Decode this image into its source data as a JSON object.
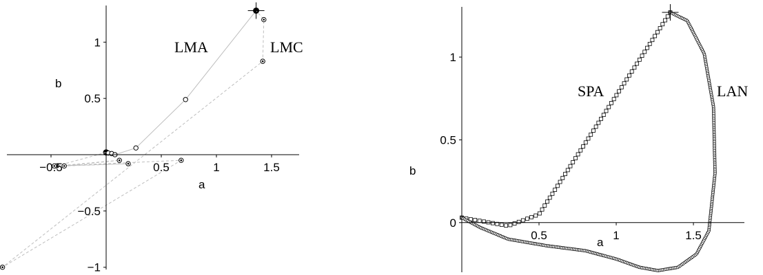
{
  "chart_data": [
    {
      "type": "line",
      "title": "",
      "xlabel": "a",
      "ylabel": "b",
      "xlim": [
        -0.9,
        1.75
      ],
      "ylim": [
        -1.02,
        1.35
      ],
      "x_ticks": [
        -0.5,
        0.5,
        1,
        1.5
      ],
      "x_tick_labels": [
        "−0.5",
        "0.5",
        "1",
        "1.5"
      ],
      "y_ticks": [
        -1,
        -0.5,
        0.5,
        1
      ],
      "y_tick_labels": [
        "−1",
        "−0.5",
        "0.5",
        "1"
      ],
      "grid": false,
      "legend": "none",
      "target": {
        "x": 1.36,
        "y": 1.28
      },
      "series": [
        {
          "name": "LMA",
          "style": "solid",
          "marker": "open-circle",
          "x": [
            0,
            0.02,
            0.05,
            0.08,
            0.27,
            0.72,
            1.36
          ],
          "y": [
            0.02,
            0.015,
            0.01,
            0.0,
            0.06,
            0.49,
            1.28
          ]
        },
        {
          "name": "LMC",
          "style": "dashed",
          "marker": "dotted-circle",
          "x": [
            0,
            -0.45,
            0.12,
            -0.38,
            0.2,
            -0.47,
            0.68,
            -0.94,
            1.42,
            1.43,
            1.36
          ],
          "y": [
            0.02,
            -0.1,
            -0.05,
            -0.1,
            -0.08,
            -0.1,
            -0.05,
            -1.0,
            0.83,
            1.2,
            1.28
          ]
        }
      ],
      "annotations": [
        "LMA",
        "LMC"
      ]
    },
    {
      "type": "scatter",
      "title": "",
      "xlabel": "a",
      "ylabel": "b",
      "xlim": [
        0,
        1.83
      ],
      "ylim": [
        -0.3,
        1.32
      ],
      "x_ticks": [
        0.5,
        1,
        1.5
      ],
      "x_tick_labels": [
        "0.5",
        "1",
        "1.5"
      ],
      "y_ticks": [
        0,
        0.5,
        1
      ],
      "y_tick_labels": [
        "0",
        "0.5",
        "1"
      ],
      "grid": false,
      "legend": "none",
      "target": {
        "x": 1.35,
        "y": 1.27
      },
      "series": [
        {
          "name": "SPA",
          "marker": "open-square",
          "path_x": [
            0.0,
            0.3,
            0.5,
            1.35
          ],
          "path_y": [
            0.03,
            -0.02,
            0.05,
            1.27
          ],
          "n_points": 70
        },
        {
          "name": "LAN",
          "marker": "small-circle",
          "path_x": [
            0.0,
            0.12,
            0.3,
            0.55,
            0.8,
            1.0,
            1.15,
            1.27,
            1.4,
            1.52,
            1.6,
            1.64,
            1.63,
            1.57,
            1.46,
            1.35
          ],
          "path_y": [
            0.03,
            -0.03,
            -0.1,
            -0.14,
            -0.17,
            -0.22,
            -0.27,
            -0.29,
            -0.27,
            -0.19,
            -0.05,
            0.3,
            0.7,
            1.02,
            1.22,
            1.27
          ],
          "n_points": 300
        }
      ],
      "annotations": [
        "SPA",
        "LAN"
      ]
    }
  ]
}
